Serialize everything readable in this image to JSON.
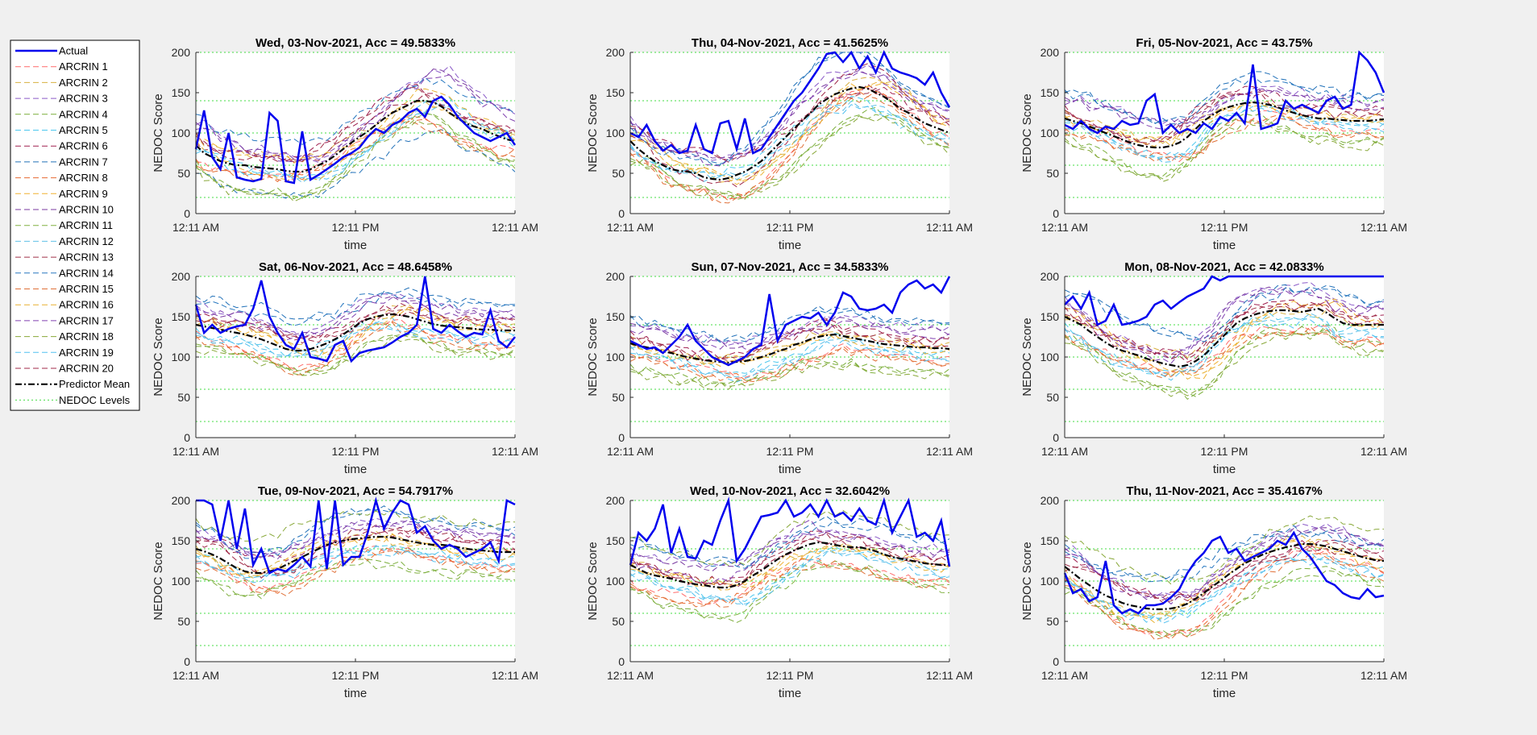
{
  "figure": {
    "background": "#f0f0f0"
  },
  "legend": {
    "placement": "left",
    "entries": [
      {
        "label": "Actual",
        "color": "#0000ee",
        "style": "solid"
      },
      {
        "label": "ARCRIN 1",
        "color": "#ff6a6a",
        "style": "dashed"
      },
      {
        "label": "ARCRIN 2",
        "color": "#d8b040",
        "style": "dashed"
      },
      {
        "label": "ARCRIN 3",
        "color": "#8a5ac8",
        "style": "dashed"
      },
      {
        "label": "ARCRIN 4",
        "color": "#7aae3a",
        "style": "dashed"
      },
      {
        "label": "ARCRIN 5",
        "color": "#4cc8ee",
        "style": "dashed"
      },
      {
        "label": "ARCRIN 6",
        "color": "#a02050",
        "style": "dashed"
      },
      {
        "label": "ARCRIN 7",
        "color": "#2070b8",
        "style": "dashed"
      },
      {
        "label": "ARCRIN 8",
        "color": "#e86a30",
        "style": "dashed"
      },
      {
        "label": "ARCRIN 9",
        "color": "#f0b030",
        "style": "dashed"
      },
      {
        "label": "ARCRIN 10",
        "color": "#7a3aa0",
        "style": "dashed"
      },
      {
        "label": "ARCRIN 11",
        "color": "#80b040",
        "style": "dashed"
      },
      {
        "label": "ARCRIN 12",
        "color": "#60c0e8",
        "style": "dashed"
      },
      {
        "label": "ARCRIN 13",
        "color": "#a03048",
        "style": "dashed"
      },
      {
        "label": "ARCRIN 14",
        "color": "#2878c0",
        "style": "dashed"
      },
      {
        "label": "ARCRIN 15",
        "color": "#e07038",
        "style": "dashed"
      },
      {
        "label": "ARCRIN 16",
        "color": "#e8b030",
        "style": "dashed"
      },
      {
        "label": "ARCRIN 17",
        "color": "#8040b0",
        "style": "dashed"
      },
      {
        "label": "ARCRIN 18",
        "color": "#88a838",
        "style": "dashed"
      },
      {
        "label": "ARCRIN 19",
        "color": "#50c0f0",
        "style": "dashed"
      },
      {
        "label": "ARCRIN 20",
        "color": "#a02848",
        "style": "dashed"
      },
      {
        "label": "Predictor Mean",
        "color": "#000000",
        "style": "dashdot"
      },
      {
        "label": "NEDOC Levels",
        "color": "#44dd44",
        "style": "dotted"
      }
    ]
  },
  "chart_data": [
    {
      "type": "line",
      "title": "Wed, 03-Nov-2021, Acc = 49.5833%",
      "xlabel": "time",
      "ylabel": "NEDOC Score",
      "xticks": [
        "12:11 AM",
        "12:11 PM",
        "12:11 AM"
      ],
      "yticks": [
        0,
        50,
        100,
        150,
        200
      ],
      "ylim": [
        0,
        200
      ],
      "nedoc_levels": [
        20,
        60,
        100,
        140,
        200
      ],
      "actual": [
        80,
        128,
        70,
        55,
        100,
        45,
        42,
        40,
        43,
        125,
        115,
        40,
        38,
        102,
        42,
        48,
        55,
        62,
        70,
        75,
        82,
        95,
        105,
        100,
        110,
        115,
        125,
        130,
        120,
        140,
        145,
        135,
        120,
        110,
        100,
        95,
        90,
        95,
        100,
        85
      ],
      "mean": [
        85,
        75,
        70,
        65,
        62,
        60,
        60,
        58,
        57,
        56,
        55,
        53,
        52,
        52,
        55,
        60,
        65,
        72,
        80,
        88,
        95,
        102,
        110,
        118,
        125,
        130,
        135,
        140,
        140,
        138,
        133,
        125,
        118,
        112,
        108,
        105,
        100,
        96,
        92,
        90
      ]
    },
    {
      "type": "line",
      "title": "Thu, 04-Nov-2021, Acc = 41.5625%",
      "xlabel": "time",
      "ylabel": "NEDOC Score",
      "xticks": [
        "12:11 AM",
        "12:11 PM",
        "12:11 AM"
      ],
      "yticks": [
        0,
        50,
        100,
        150,
        200
      ],
      "ylim": [
        0,
        200
      ],
      "nedoc_levels": [
        20,
        60,
        100,
        140,
        200
      ],
      "actual": [
        100,
        95,
        110,
        90,
        78,
        85,
        75,
        78,
        110,
        80,
        75,
        112,
        115,
        80,
        118,
        75,
        80,
        95,
        110,
        125,
        140,
        150,
        165,
        180,
        198,
        200,
        188,
        200,
        180,
        195,
        175,
        200,
        180,
        175,
        172,
        168,
        160,
        175,
        150,
        132
      ],
      "mean": [
        90,
        80,
        72,
        65,
        60,
        55,
        53,
        52,
        50,
        45,
        43,
        42,
        44,
        48,
        52,
        58,
        65,
        75,
        85,
        95,
        105,
        115,
        125,
        135,
        142,
        148,
        152,
        155,
        157,
        155,
        150,
        145,
        138,
        130,
        125,
        118,
        112,
        108,
        104,
        100
      ]
    },
    {
      "type": "line",
      "title": "Fri, 05-Nov-2021, Acc = 43.75%",
      "xlabel": "time",
      "ylabel": "NEDOC Score",
      "xticks": [
        "12:11 AM",
        "12:11 PM",
        "12:11 AM"
      ],
      "yticks": [
        0,
        50,
        100,
        150,
        200
      ],
      "ylim": [
        0,
        200
      ],
      "nedoc_levels": [
        20,
        60,
        100,
        140,
        200
      ],
      "actual": [
        110,
        105,
        115,
        105,
        100,
        108,
        105,
        115,
        110,
        112,
        140,
        148,
        100,
        110,
        100,
        105,
        100,
        112,
        105,
        120,
        115,
        125,
        112,
        185,
        105,
        108,
        112,
        140,
        130,
        135,
        130,
        125,
        140,
        145,
        130,
        135,
        200,
        190,
        175,
        150
      ],
      "mean": [
        118,
        115,
        112,
        108,
        104,
        100,
        96,
        92,
        88,
        85,
        83,
        82,
        82,
        84,
        88,
        95,
        105,
        115,
        122,
        128,
        132,
        135,
        137,
        138,
        137,
        135,
        132,
        128,
        125,
        122,
        120,
        118,
        118,
        117,
        116,
        115,
        115,
        115,
        116,
        117
      ]
    },
    {
      "type": "line",
      "title": "Sat, 06-Nov-2021, Acc = 48.6458%",
      "xlabel": "time",
      "ylabel": "NEDOC Score",
      "xticks": [
        "12:11 AM",
        "12:11 PM",
        "12:11 AM"
      ],
      "yticks": [
        0,
        50,
        100,
        150,
        200
      ],
      "ylim": [
        0,
        200
      ],
      "nedoc_levels": [
        20,
        60,
        100,
        140,
        200
      ],
      "actual": [
        165,
        130,
        140,
        130,
        135,
        138,
        140,
        160,
        195,
        150,
        130,
        115,
        110,
        130,
        100,
        98,
        95,
        115,
        120,
        95,
        105,
        108,
        110,
        112,
        118,
        125,
        130,
        140,
        200,
        135,
        130,
        140,
        132,
        125,
        130,
        128,
        158,
        120,
        112,
        125
      ],
      "mean": [
        140,
        138,
        136,
        134,
        132,
        130,
        128,
        125,
        122,
        118,
        114,
        110,
        108,
        108,
        110,
        113,
        117,
        122,
        128,
        135,
        142,
        147,
        150,
        152,
        153,
        152,
        150,
        147,
        144,
        141,
        139,
        138,
        137,
        136,
        135,
        134,
        134,
        133,
        133,
        133
      ]
    },
    {
      "type": "line",
      "title": "Sun, 07-Nov-2021, Acc = 34.5833%",
      "xlabel": "time",
      "ylabel": "NEDOC Score",
      "xticks": [
        "12:11 AM",
        "12:11 PM",
        "12:11 AM"
      ],
      "yticks": [
        0,
        50,
        100,
        150,
        200
      ],
      "ylim": [
        0,
        200
      ],
      "nedoc_levels": [
        20,
        60,
        100,
        140,
        200
      ],
      "actual": [
        120,
        115,
        110,
        112,
        105,
        115,
        125,
        140,
        120,
        110,
        100,
        95,
        90,
        95,
        100,
        110,
        115,
        178,
        120,
        140,
        145,
        150,
        148,
        155,
        140,
        155,
        180,
        175,
        160,
        158,
        160,
        165,
        155,
        180,
        190,
        195,
        185,
        190,
        180,
        200
      ],
      "mean": [
        117,
        114,
        112,
        110,
        107,
        105,
        102,
        100,
        98,
        96,
        95,
        94,
        93,
        94,
        95,
        97,
        100,
        103,
        107,
        110,
        115,
        118,
        122,
        125,
        127,
        128,
        126,
        124,
        122,
        120,
        118,
        116,
        115,
        114,
        113,
        112,
        112,
        111,
        111,
        110
      ]
    },
    {
      "type": "line",
      "title": "Mon, 08-Nov-2021, Acc = 42.0833%",
      "xlabel": "time",
      "ylabel": "NEDOC Score",
      "xticks": [
        "12:11 AM",
        "12:11 PM",
        "12:11 AM"
      ],
      "yticks": [
        0,
        50,
        100,
        150,
        200
      ],
      "ylim": [
        0,
        200
      ],
      "nedoc_levels": [
        20,
        60,
        100,
        140,
        200
      ],
      "actual": [
        165,
        175,
        160,
        180,
        140,
        145,
        165,
        140,
        142,
        145,
        150,
        165,
        170,
        160,
        168,
        175,
        180,
        185,
        200,
        195,
        200,
        200,
        200,
        200,
        200,
        200,
        200,
        200,
        200,
        200,
        200,
        200,
        200,
        200,
        200,
        200,
        200,
        200,
        200,
        200
      ],
      "mean": [
        150,
        145,
        140,
        132,
        125,
        118,
        112,
        108,
        105,
        102,
        98,
        95,
        92,
        90,
        88,
        90,
        95,
        102,
        112,
        122,
        132,
        142,
        148,
        152,
        155,
        157,
        158,
        158,
        157,
        156,
        158,
        160,
        155,
        148,
        142,
        140,
        140,
        140,
        140,
        140
      ]
    },
    {
      "type": "line",
      "title": "Tue, 09-Nov-2021, Acc = 54.7917%",
      "xlabel": "time",
      "ylabel": "NEDOC Score",
      "xticks": [
        "12:11 AM",
        "12:11 PM",
        "12:11 AM"
      ],
      "yticks": [
        0,
        50,
        100,
        150,
        200
      ],
      "ylim": [
        0,
        200
      ],
      "nedoc_levels": [
        20,
        60,
        100,
        140,
        200
      ],
      "actual": [
        200,
        200,
        195,
        150,
        200,
        140,
        190,
        120,
        140,
        110,
        115,
        112,
        120,
        130,
        118,
        200,
        115,
        200,
        120,
        130,
        130,
        160,
        200,
        165,
        185,
        200,
        195,
        160,
        168,
        150,
        140,
        145,
        140,
        130,
        135,
        140,
        148,
        125,
        200,
        195
      ],
      "mean": [
        140,
        137,
        133,
        128,
        122,
        116,
        112,
        110,
        110,
        112,
        115,
        120,
        125,
        130,
        135,
        140,
        145,
        148,
        150,
        152,
        153,
        154,
        155,
        155,
        154,
        152,
        150,
        148,
        146,
        145,
        145,
        144,
        142,
        140,
        139,
        138,
        137,
        136,
        136,
        136
      ]
    },
    {
      "type": "line",
      "title": "Wed, 10-Nov-2021, Acc = 32.6042%",
      "xlabel": "time",
      "ylabel": "NEDOC Score",
      "xticks": [
        "12:11 AM",
        "12:11 PM",
        "12:11 AM"
      ],
      "yticks": [
        0,
        50,
        100,
        150,
        200
      ],
      "ylim": [
        0,
        200
      ],
      "nedoc_levels": [
        20,
        60,
        100,
        140,
        200
      ],
      "actual": [
        120,
        160,
        150,
        165,
        195,
        135,
        165,
        130,
        128,
        150,
        145,
        175,
        200,
        125,
        140,
        160,
        180,
        182,
        185,
        200,
        180,
        185,
        195,
        180,
        200,
        180,
        185,
        175,
        190,
        175,
        170,
        200,
        160,
        180,
        200,
        155,
        160,
        150,
        175,
        118
      ],
      "mean": [
        120,
        115,
        110,
        107,
        105,
        103,
        100,
        98,
        96,
        95,
        93,
        92,
        92,
        95,
        100,
        107,
        113,
        120,
        127,
        133,
        138,
        142,
        146,
        148,
        147,
        145,
        143,
        142,
        142,
        140,
        137,
        133,
        130,
        128,
        126,
        124,
        122,
        121,
        120,
        120
      ]
    },
    {
      "type": "line",
      "title": "Thu, 11-Nov-2021, Acc = 35.4167%",
      "xlabel": "time",
      "ylabel": "NEDOC Score",
      "xticks": [
        "12:11 AM",
        "12:11 PM",
        "12:11 AM"
      ],
      "yticks": [
        0,
        50,
        100,
        150,
        200
      ],
      "ylim": [
        0,
        200
      ],
      "nedoc_levels": [
        20,
        60,
        100,
        140,
        200
      ],
      "actual": [
        110,
        85,
        90,
        75,
        80,
        125,
        70,
        60,
        65,
        60,
        70,
        70,
        72,
        80,
        90,
        110,
        125,
        135,
        150,
        155,
        135,
        140,
        125,
        130,
        135,
        140,
        150,
        145,
        160,
        140,
        130,
        115,
        100,
        95,
        85,
        80,
        78,
        90,
        80,
        82
      ],
      "mean": [
        118,
        110,
        102,
        95,
        88,
        82,
        78,
        73,
        70,
        68,
        66,
        65,
        65,
        66,
        68,
        72,
        78,
        85,
        93,
        100,
        108,
        115,
        122,
        127,
        132,
        136,
        139,
        142,
        144,
        146,
        146,
        145,
        143,
        140,
        137,
        134,
        131,
        128,
        126,
        125
      ]
    }
  ]
}
